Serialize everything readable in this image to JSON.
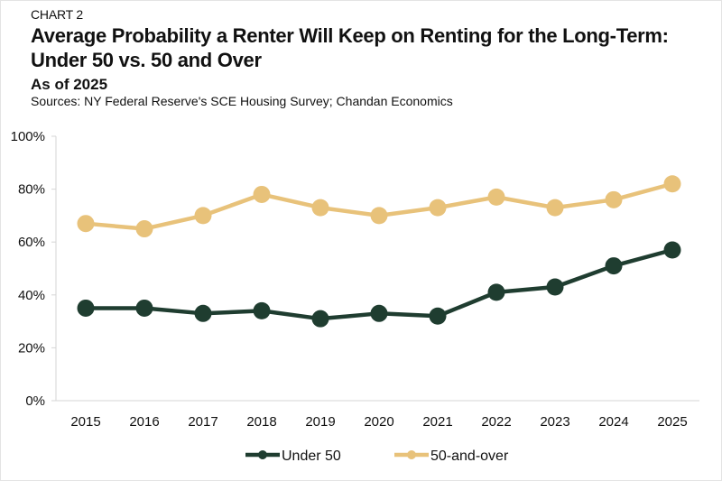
{
  "header": {
    "kicker": "CHART 2",
    "title_line1": "Average Probability a Renter Will Keep on Renting for the Long-Term:",
    "title_line2": "Under 50 vs. 50 and Over",
    "subtitle": "As of 2025",
    "source": "Sources: NY Federal Reserve's SCE Housing Survey; Chandan Economics"
  },
  "chart_data": {
    "type": "line",
    "title": "Average Probability a Renter Will Keep on Renting for the Long-Term: Under 50 vs. 50 and Over",
    "subtitle": "As of 2025",
    "xlabel": "",
    "ylabel": "",
    "x": [
      "2015",
      "2016",
      "2017",
      "2018",
      "2019",
      "2020",
      "2021",
      "2022",
      "2023",
      "2024",
      "2025"
    ],
    "ylim": [
      0,
      100
    ],
    "yticks": [
      0,
      20,
      40,
      60,
      80,
      100
    ],
    "ytick_labels": [
      "0%",
      "20%",
      "40%",
      "60%",
      "80%",
      "100%"
    ],
    "grid": false,
    "legend_position": "bottom-center",
    "series": [
      {
        "name": "Under 50",
        "color": "#1f3d30",
        "values": [
          35,
          35,
          33,
          34,
          31,
          33,
          32,
          41,
          43,
          51,
          57
        ]
      },
      {
        "name": "50-and-over",
        "color": "#e8c27a",
        "values": [
          67,
          65,
          70,
          78,
          73,
          70,
          73,
          77,
          73,
          76,
          82
        ]
      }
    ]
  }
}
